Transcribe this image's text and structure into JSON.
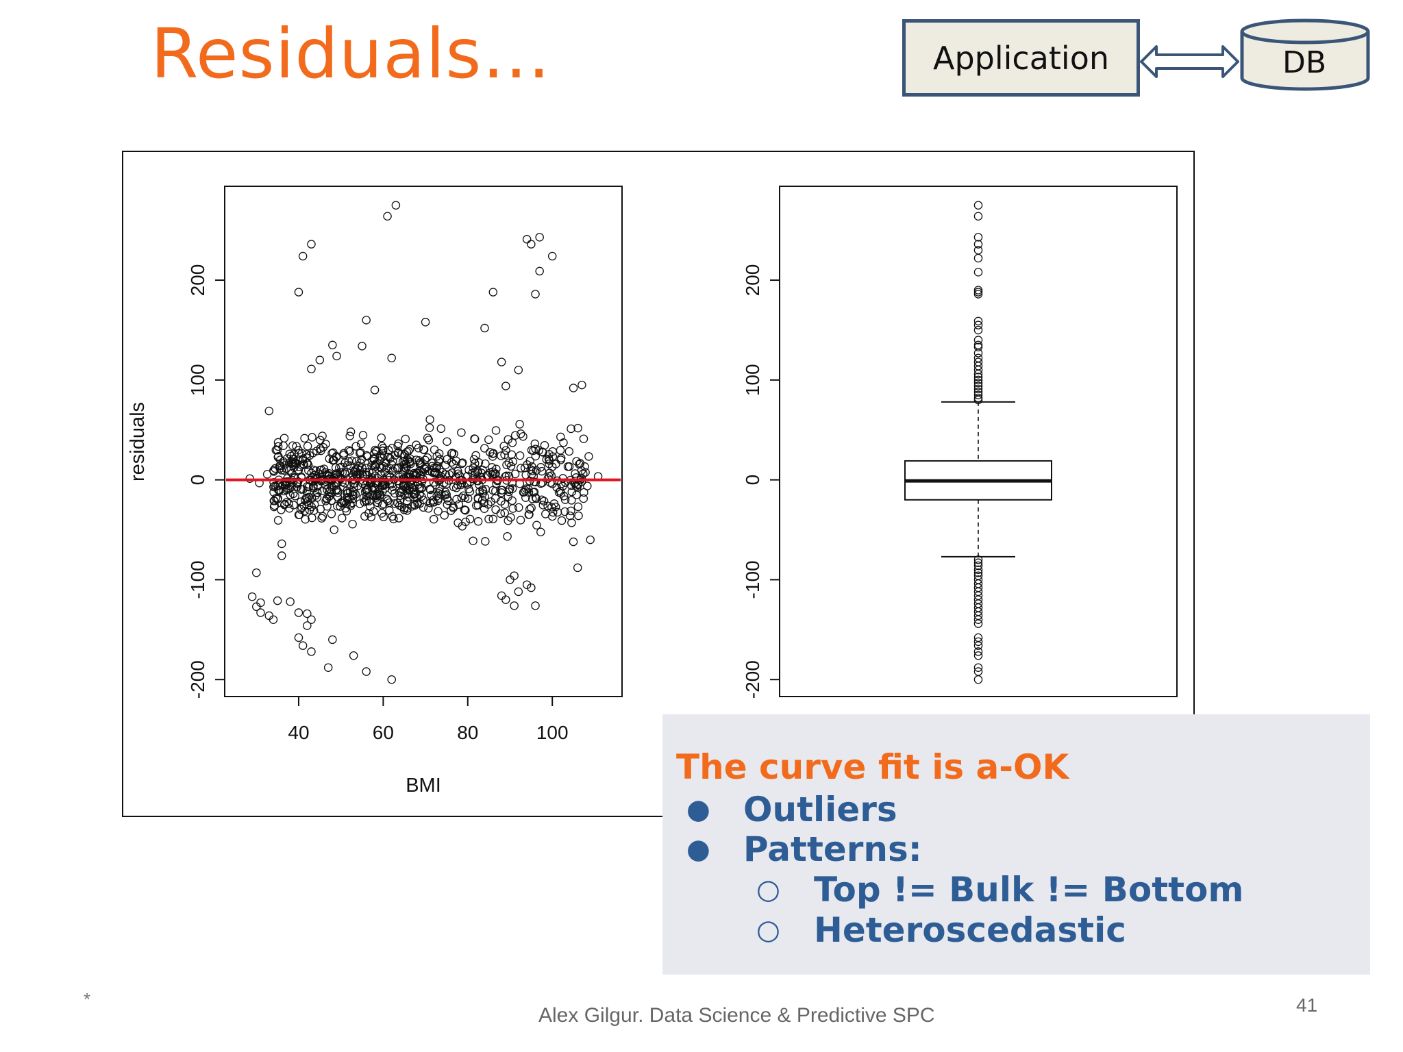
{
  "slide": {
    "title": "Residuals…",
    "app_box_label": "Application",
    "db_label": "DB",
    "footer_star": "*",
    "footer_text": "Alex Gilgur.  Data Science & Predictive SPC",
    "page_number": "41"
  },
  "callout": {
    "heading": "The curve fit is a-OK",
    "bullets": [
      "Outliers",
      "Patterns:"
    ],
    "sub_bullets": [
      "Top != Bulk != Bottom",
      "Heteroscedastic"
    ],
    "bullet_mark": "●",
    "sub_bullet_mark": "○"
  },
  "colors": {
    "title": "#f26a1b",
    "bullet_text": "#2e5d96",
    "zero_line": "#e0141e",
    "callout_bg": "#e8e9ee"
  },
  "chart_data": [
    {
      "type": "scatter",
      "xlabel": "BMI",
      "ylabel": "residuals",
      "x_ticks": [
        40,
        60,
        80,
        100
      ],
      "y_ticks": [
        -200,
        -100,
        0,
        100,
        200
      ],
      "xlim": [
        22.5,
        116.5
      ],
      "ylim": [
        -217,
        294
      ],
      "reference_line": {
        "y": 0,
        "color": "#e0141e"
      },
      "outlier_points": [
        [
          61,
          264
        ],
        [
          63,
          275
        ],
        [
          41,
          224
        ],
        [
          43,
          236
        ],
        [
          40,
          188
        ],
        [
          97,
          243
        ],
        [
          95,
          236
        ],
        [
          94,
          241
        ],
        [
          100,
          224
        ],
        [
          97,
          209
        ],
        [
          96,
          186
        ],
        [
          86,
          188
        ],
        [
          84,
          152
        ],
        [
          70,
          158
        ],
        [
          56,
          160
        ],
        [
          48,
          135
        ],
        [
          55,
          134
        ],
        [
          49,
          124
        ],
        [
          45,
          120
        ],
        [
          88,
          118
        ],
        [
          92,
          110
        ],
        [
          62,
          122
        ],
        [
          43,
          111
        ],
        [
          105,
          92
        ],
        [
          107,
          95
        ],
        [
          89,
          94
        ],
        [
          58,
          90
        ],
        [
          33,
          69
        ],
        [
          30,
          -93
        ],
        [
          29,
          -117
        ],
        [
          31,
          -123
        ],
        [
          30,
          -127
        ],
        [
          31,
          -133
        ],
        [
          33,
          -136
        ],
        [
          34,
          -140
        ],
        [
          35,
          -121
        ],
        [
          38,
          -122
        ],
        [
          40,
          -133
        ],
        [
          42,
          -134
        ],
        [
          42,
          -146
        ],
        [
          43,
          -140
        ],
        [
          40,
          -158
        ],
        [
          41,
          -166
        ],
        [
          43,
          -172
        ],
        [
          48,
          -160
        ],
        [
          47,
          -188
        ],
        [
          53,
          -176
        ],
        [
          56,
          -192
        ],
        [
          62,
          -200
        ],
        [
          89,
          -120
        ],
        [
          91,
          -126
        ],
        [
          92,
          -112
        ],
        [
          94,
          -105
        ],
        [
          95,
          -108
        ],
        [
          96,
          -126
        ],
        [
          88,
          -116
        ],
        [
          90,
          -100
        ],
        [
          91,
          -96
        ],
        [
          106,
          -88
        ],
        [
          105,
          -62
        ],
        [
          109,
          -60
        ],
        [
          36,
          -64
        ],
        [
          36,
          -76
        ]
      ]
    },
    {
      "type": "box",
      "y_ticks": [
        -200,
        -100,
        0,
        100,
        200
      ],
      "ylim": [
        -217,
        294
      ],
      "median": -1,
      "q1": -20,
      "q3": 19,
      "whisker_low": -77,
      "whisker_high": 78,
      "upper_outliers": [
        80,
        82,
        85,
        88,
        91,
        94,
        97,
        100,
        103,
        106,
        110,
        114,
        118,
        122,
        127,
        133,
        135,
        140,
        150,
        155,
        159,
        186,
        188,
        190,
        208,
        222,
        230,
        236,
        243,
        264,
        275
      ],
      "lower_outliers": [
        -80,
        -83,
        -86,
        -90,
        -93,
        -96,
        -100,
        -104,
        -108,
        -112,
        -116,
        -120,
        -124,
        -128,
        -132,
        -136,
        -140,
        -144,
        -158,
        -162,
        -166,
        -172,
        -176,
        -188,
        -192,
        -200
      ]
    }
  ]
}
